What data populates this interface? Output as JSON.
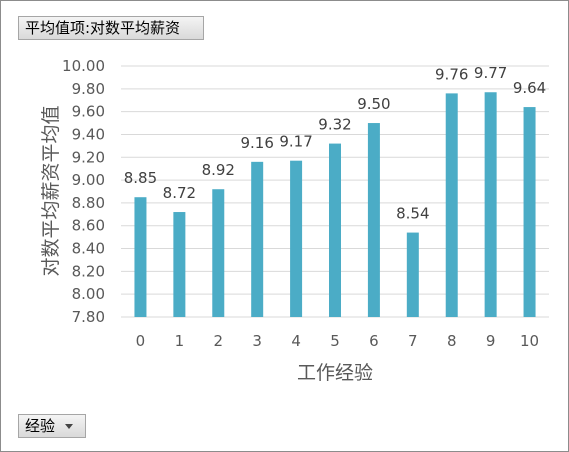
{
  "pivot": {
    "value_field_label": "平均值项:对数平均薪资",
    "axis_field_label": "经验",
    "axis_field_dropdown_icon": "caret-down-icon"
  },
  "colors": {
    "bar": "#4bacc6",
    "grid": "#d9d9d9",
    "axis_text": "#595959",
    "label_text": "#404040"
  },
  "chart_data": {
    "type": "bar",
    "categories": [
      "0",
      "1",
      "2",
      "3",
      "4",
      "5",
      "6",
      "7",
      "8",
      "9",
      "10"
    ],
    "series": [
      {
        "values": [
          8.85,
          8.72,
          8.92,
          9.16,
          9.17,
          9.32,
          9.5,
          8.54,
          9.76,
          9.77,
          9.64
        ]
      }
    ],
    "data_labels": [
      "8.85",
      "8.72",
      "8.92",
      "9.16",
      "9.17",
      "9.32",
      "9.50",
      "8.54",
      "9.76",
      "9.77",
      "9.64"
    ],
    "xlabel": "工作经验",
    "ylabel": "对数平均薪资平均值",
    "ylim": [
      7.8,
      10.0
    ],
    "yticks": [
      7.8,
      8.0,
      8.2,
      8.4,
      8.6,
      8.8,
      9.0,
      9.2,
      9.4,
      9.6,
      9.8,
      10.0
    ],
    "ytick_labels": [
      "7.80",
      "8.00",
      "8.20",
      "8.40",
      "8.60",
      "8.80",
      "9.00",
      "9.20",
      "9.40",
      "9.60",
      "9.80",
      "10.00"
    ],
    "grid": true,
    "legend": "none"
  }
}
